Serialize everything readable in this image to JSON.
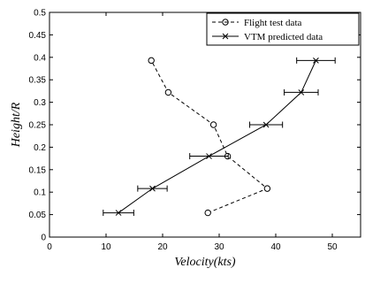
{
  "chart_data": {
    "type": "line",
    "title": "",
    "xlabel": "Velocity(kts)",
    "ylabel": "Height/R",
    "xlim": [
      0,
      55
    ],
    "ylim": [
      0,
      0.5
    ],
    "xticks": [
      "0",
      "10",
      "20",
      "30",
      "40",
      "50"
    ],
    "yticks": [
      "0",
      "0.05",
      "0.1",
      "0.15",
      "0.2",
      "0.25",
      "0.3",
      "0.35",
      "0.4",
      "0.45",
      "0.5"
    ],
    "grid": false,
    "legend_position": "top-right",
    "series": [
      {
        "name": "Flight test data",
        "legend_label": "– ⊖ – Flight test data",
        "line_style": "dashed",
        "marker": "circle",
        "color": "#000000",
        "x": [
          28.0,
          38.5,
          31.5,
          29.0,
          21.0,
          18.0
        ],
        "y": [
          0.054,
          0.108,
          0.18,
          0.25,
          0.322,
          0.393
        ]
      },
      {
        "name": "VTM predicted data",
        "legend_label": "VTM predicted data",
        "line_style": "solid",
        "marker": "x",
        "color": "#000000",
        "x": [
          12.2,
          18.2,
          28.2,
          38.3,
          44.5,
          47.1
        ],
        "y": [
          0.054,
          0.108,
          0.18,
          0.25,
          0.322,
          0.393
        ],
        "xerr": [
          2.7,
          2.6,
          3.4,
          2.9,
          3.0,
          3.4
        ]
      }
    ]
  }
}
